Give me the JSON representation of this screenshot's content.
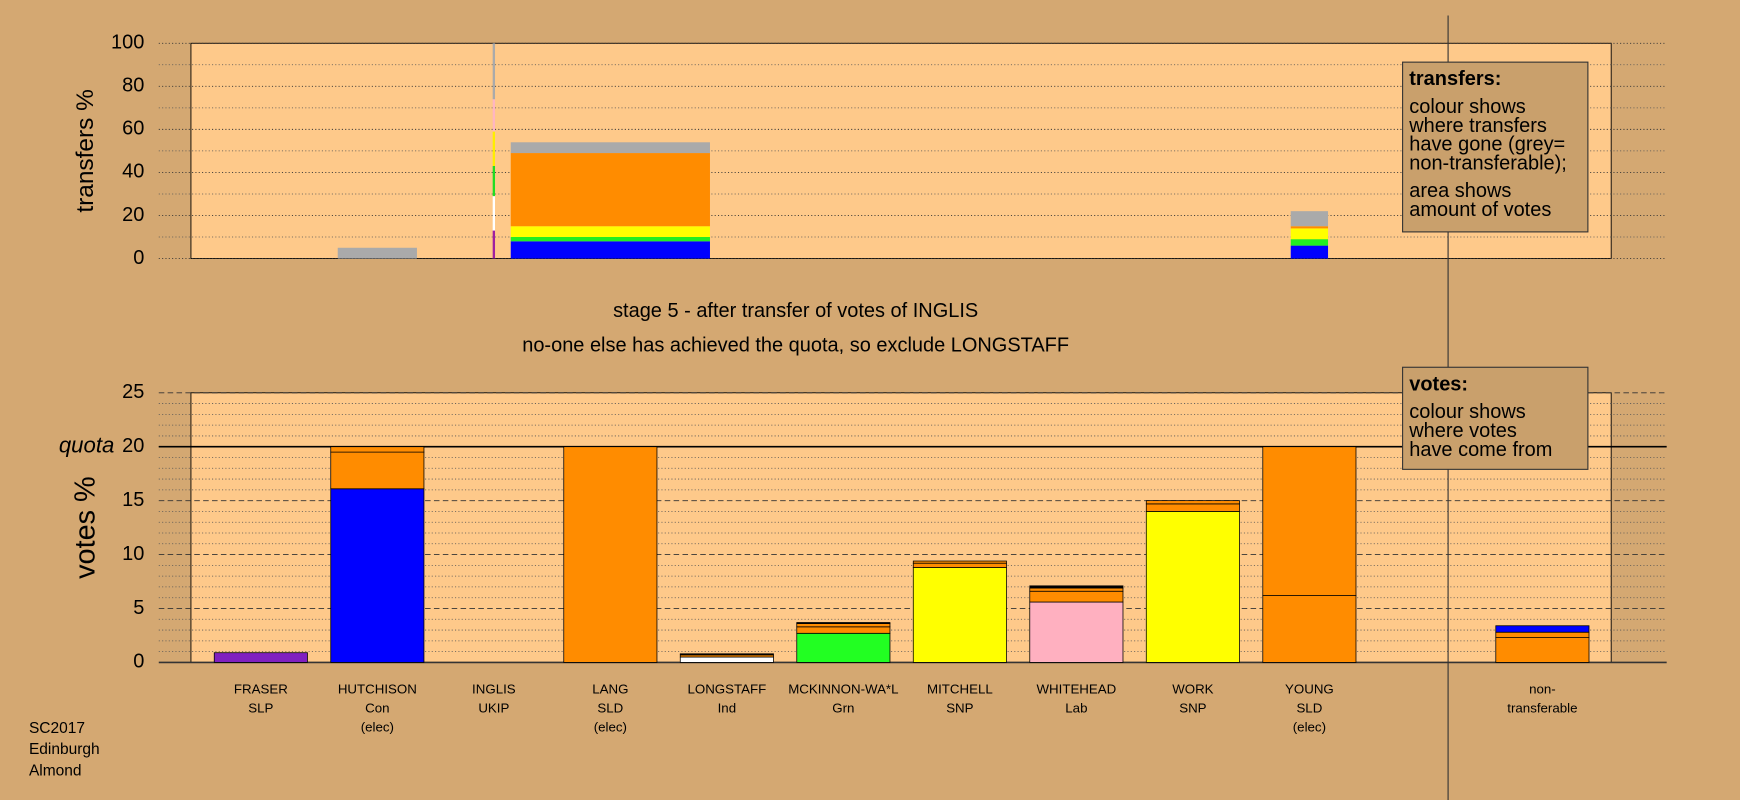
{
  "chart_data": [
    {
      "type": "bar",
      "ylabel": "transfers %",
      "ylim": [
        0,
        100
      ],
      "yticks": [
        0,
        20,
        40,
        60,
        80,
        100
      ],
      "yminorticks": [
        10,
        30,
        50,
        70,
        90
      ],
      "widths": [
        null,
        0.68,
        0.02,
        1.71,
        null,
        null,
        null,
        null,
        null,
        0.32,
        null,
        null
      ],
      "stacks": [
        [],
        [
          {
            "color": "#aaaaaa",
            "value": 5
          }
        ],
        [
          {
            "color": "#a020a0",
            "value": 13
          },
          {
            "color": "#ffffff",
            "value": 16
          },
          {
            "color": "#22dd22",
            "value": 14
          },
          {
            "color": "#ffee00",
            "value": 16
          },
          {
            "color": "#ffb6c1",
            "value": 15
          },
          {
            "color": "#aaaaaa",
            "value": 26
          }
        ],
        [
          {
            "color": "#0000ff",
            "value": 8
          },
          {
            "color": "#22ee22",
            "value": 2
          },
          {
            "color": "#ffff00",
            "value": 5
          },
          {
            "color": "#ff8c00",
            "value": 34
          },
          {
            "color": "#aaaaaa",
            "value": 5
          }
        ],
        [],
        [],
        [],
        [],
        [],
        [
          {
            "color": "#0000ff",
            "value": 6
          },
          {
            "color": "#22ee22",
            "value": 3
          },
          {
            "color": "#ffff00",
            "value": 5
          },
          {
            "color": "#ff8c00",
            "value": 1
          },
          {
            "color": "#aaaaaa",
            "value": 7
          }
        ],
        [],
        []
      ],
      "legend_box": {
        "title": "transfers:",
        "paragraphs": [
          [
            "colour shows",
            "where transfers",
            "have gone (grey=",
            "non-transferable);"
          ],
          [
            "area shows",
            "amount of votes"
          ]
        ]
      }
    },
    {
      "type": "bar",
      "title": [
        "stage 5 - after transfer of votes of INGLIS",
        "no-one else has achieved the quota, so exclude LONGSTAFF"
      ],
      "ylabel": "votes %",
      "ylim": [
        0,
        25
      ],
      "yticks": [
        0,
        5,
        10,
        15,
        20,
        25
      ],
      "yminorticks": [
        1,
        2,
        3,
        4,
        6,
        7,
        8,
        9,
        11,
        12,
        13,
        14,
        16,
        17,
        18,
        19,
        21,
        22,
        23,
        24
      ],
      "reference_line": {
        "value": 20,
        "label": "quota"
      },
      "categories": [
        [
          "FRASER",
          "SLP"
        ],
        [
          "HUTCHISON",
          "Con",
          "(elec)"
        ],
        [
          "INGLIS",
          "UKIP"
        ],
        [
          "LANG",
          "SLD",
          "(elec)"
        ],
        [
          "LONGSTAFF",
          "Ind"
        ],
        [
          "MCKINNON-WA*L",
          "Grn"
        ],
        [
          "MITCHELL",
          "SNP"
        ],
        [
          "WHITEHEAD",
          "Lab"
        ],
        [
          "WORK",
          "SNP"
        ],
        [
          "YOUNG",
          "SLD",
          "(elec)"
        ],
        null,
        [
          "non-",
          "transferable"
        ]
      ],
      "stacks": [
        [
          {
            "color": "#8020c0",
            "value": 0.9
          }
        ],
        [
          {
            "color": "#0000ff",
            "value": 16.1
          },
          {
            "color": "#ff8c00",
            "value": 3.4
          },
          {
            "color": "#ff8c00",
            "value": 0.5
          }
        ],
        [],
        [
          {
            "color": "#ff8c00",
            "value": 20
          }
        ],
        [
          {
            "color": "#ffffff",
            "value": 0.5
          },
          {
            "color": "#ff8c00",
            "value": 0.2
          },
          {
            "color": "#000000",
            "value": 0.1
          }
        ],
        [
          {
            "color": "#22ff22",
            "value": 2.7
          },
          {
            "color": "#ff8c00",
            "value": 0.6
          },
          {
            "color": "#ff8c00",
            "value": 0.3
          },
          {
            "color": "#000000",
            "value": 0.1
          }
        ],
        [
          {
            "color": "#ffff00",
            "value": 8.8
          },
          {
            "color": "#ff8c00",
            "value": 0.4
          },
          {
            "color": "#ff8c00",
            "value": 0.2
          }
        ],
        [
          {
            "color": "#ffb0c0",
            "value": 5.6
          },
          {
            "color": "#ff8c00",
            "value": 1.0
          },
          {
            "color": "#ff8c00",
            "value": 0.3
          },
          {
            "color": "#000000",
            "value": 0.2
          }
        ],
        [
          {
            "color": "#ffff00",
            "value": 14
          },
          {
            "color": "#ff8c00",
            "value": 0.7
          },
          {
            "color": "#ff8c00",
            "value": 0.3
          }
        ],
        [
          {
            "color": "#ff8c00",
            "value": 6.2
          },
          {
            "color": "#ff8c00",
            "value": 13.8
          }
        ],
        [],
        [
          {
            "color": "#ff8c00",
            "value": 2.3
          },
          {
            "color": "#ff8c00",
            "value": 0.5
          },
          {
            "color": "#0000ff",
            "value": 0.6
          }
        ]
      ],
      "legend_box": {
        "title": "votes:",
        "paragraphs": [
          [
            "colour shows",
            "where votes",
            "have come from"
          ]
        ]
      }
    }
  ],
  "footnote": [
    "SC2017",
    "Edinburgh",
    "Almond"
  ]
}
